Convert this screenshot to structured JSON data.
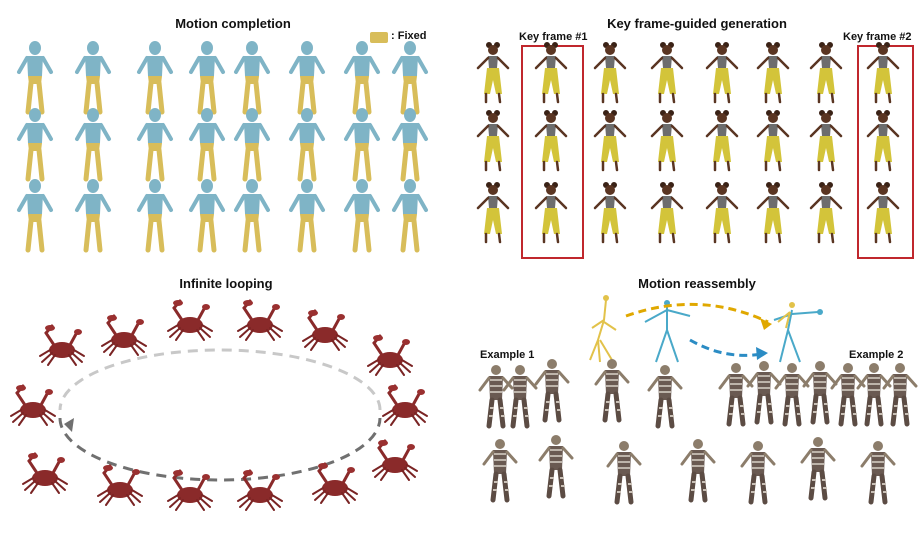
{
  "panels": {
    "motion_completion": {
      "title": "Motion completion",
      "legend_label": ": Fixed",
      "colors": {
        "body": "#7fb4c6",
        "fixed": "#d8bd5a"
      }
    },
    "keyframe_generation": {
      "title": "Key frame-guided generation",
      "key1_label": "Key frame #1",
      "key2_label": "Key frame #2",
      "colors": {
        "skin": "#5a3522",
        "pants": "#d3c43a",
        "top": "#6d6d6d",
        "box": "#c0272d"
      }
    },
    "infinite_looping": {
      "title": "Infinite looping",
      "colors": {
        "crab": "#8a2a2a",
        "loop_light": "#c8c8c8",
        "loop_dark": "#707070"
      }
    },
    "motion_reassembly": {
      "title": "Motion reassembly",
      "example1_label": "Example 1",
      "example2_label": "Example 2",
      "colors": {
        "skeleton_yellow": "#e2c24a",
        "skeleton_blue": "#4aa9c9",
        "arrow_yellow": "#e0a800",
        "arrow_blue": "#2b8cc4",
        "zombie": "#6a5a52"
      }
    }
  }
}
